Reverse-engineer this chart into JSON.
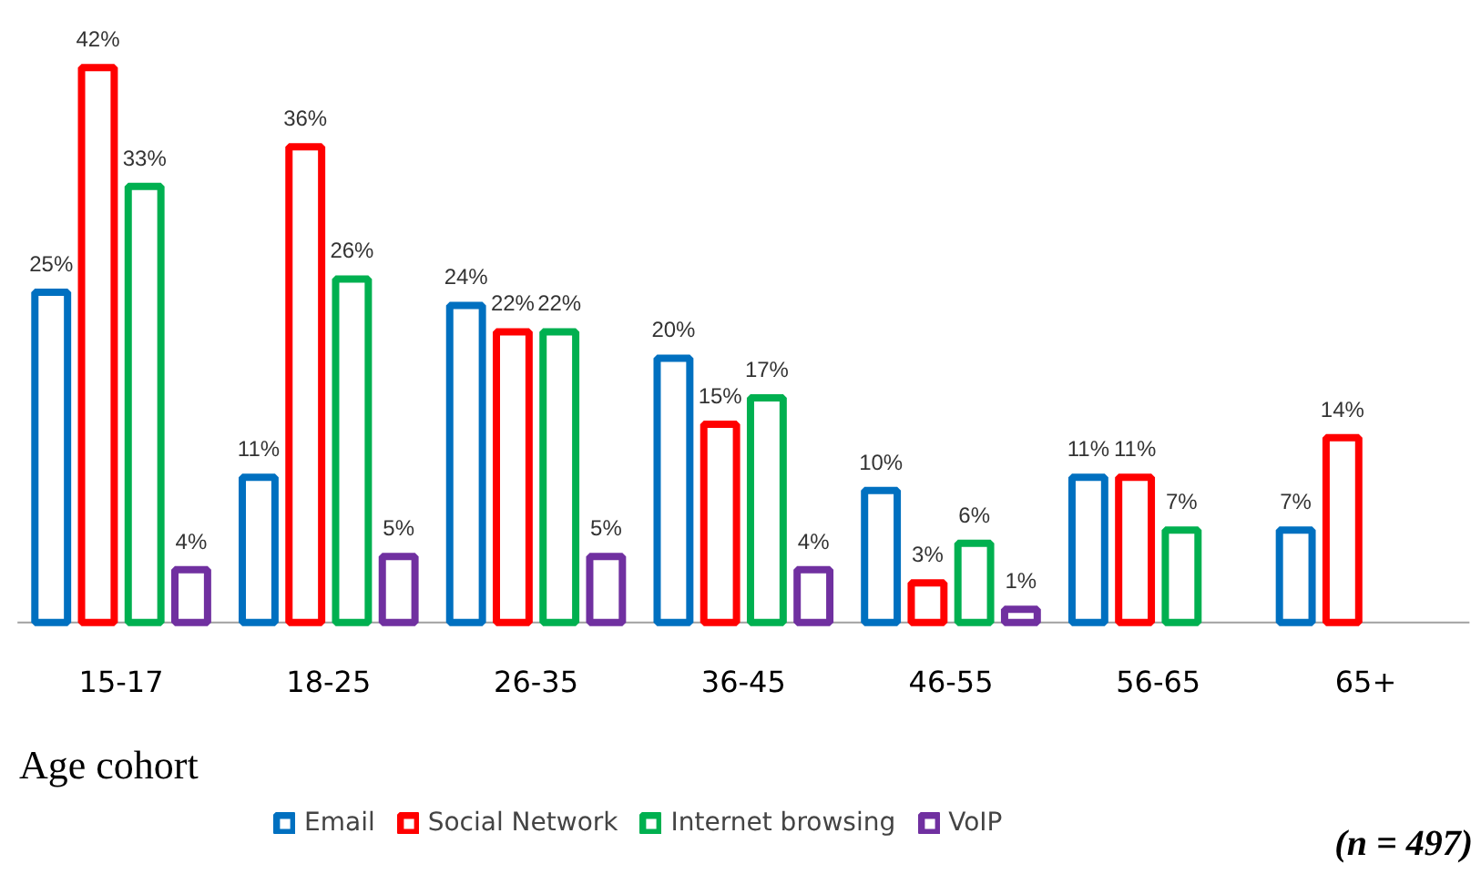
{
  "chart_data": {
    "type": "bar",
    "xlabel": "Age cohort",
    "categories": [
      "15-17",
      "18-25",
      "26-35",
      "36-45",
      "46-55",
      "56-65",
      "65+"
    ],
    "series": [
      {
        "name": "Email",
        "color": "#0070c0",
        "values": [
          25,
          11,
          24,
          20,
          10,
          11,
          7
        ],
        "value_labels": [
          "25%",
          "11%",
          "24%",
          "20%",
          "10%",
          "11%",
          "7%"
        ]
      },
      {
        "name": "Social Network",
        "color": "#ff0000",
        "values": [
          42,
          36,
          22,
          15,
          3,
          11,
          14
        ],
        "value_labels": [
          "42%",
          "36%",
          "22%",
          "15%",
          "3%",
          "11%",
          "14%"
        ]
      },
      {
        "name": "Internet browsing",
        "color": "#00b050",
        "values": [
          33,
          26,
          22,
          17,
          6,
          7,
          null
        ],
        "value_labels": [
          "33%",
          "26%",
          "22%",
          "17%",
          "6%",
          "7%",
          null
        ]
      },
      {
        "name": "VoIP",
        "color": "#7030a0",
        "values": [
          4,
          5,
          5,
          4,
          1,
          null,
          null
        ],
        "value_labels": [
          "4%",
          "5%",
          "5%",
          "4%",
          "1%",
          null,
          null
        ]
      }
    ],
    "annotations": [
      "(n = 497)"
    ],
    "legend": "bottom"
  }
}
